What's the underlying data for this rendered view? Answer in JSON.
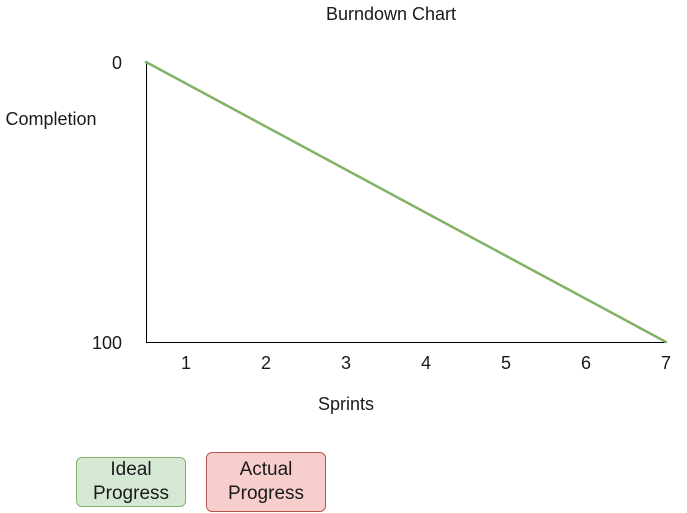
{
  "chart_data": {
    "type": "line",
    "title": "Burndown Chart",
    "xlabel": "Sprints",
    "ylabel": "Completion",
    "x_ticks": [
      "1",
      "2",
      "3",
      "4",
      "5",
      "6",
      "7"
    ],
    "y_ticks": [
      "0",
      "100"
    ],
    "xlim": [
      0.5,
      7
    ],
    "ylim": [
      0,
      100
    ],
    "y_inverted": true,
    "grid": false,
    "series": [
      {
        "name": "Ideal Progress",
        "color": "#82b366",
        "points": [
          [
            0.5,
            0
          ],
          [
            7,
            100
          ]
        ]
      }
    ],
    "legend": {
      "placement": "bottom-left",
      "items": [
        {
          "label": "Ideal\nProgress",
          "fill": "#d5e8d4",
          "stroke": "#82b366"
        },
        {
          "label": "Actual\nProgress",
          "fill": "#f8cecc",
          "stroke": "#b85450"
        }
      ]
    }
  }
}
